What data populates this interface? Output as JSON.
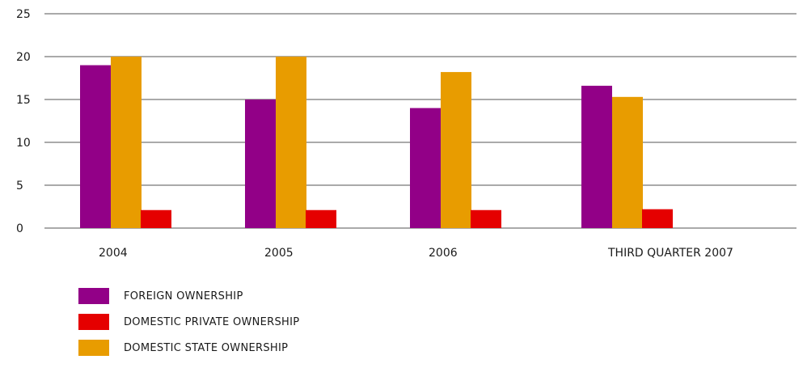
{
  "chart_data": {
    "type": "bar",
    "title": "",
    "xlabel": "",
    "ylabel": "",
    "categories": [
      "2004",
      "2005",
      "2006",
      "THIRD QUARTER 2007"
    ],
    "ylim": [
      0,
      25
    ],
    "yticks": [
      0,
      5,
      10,
      15,
      20,
      25
    ],
    "grid": true,
    "legend_position": "bottom-left",
    "series": [
      {
        "name": "FOREIGN OWNERSHIP",
        "color": "#920087",
        "values": [
          19,
          15,
          14,
          16.6
        ]
      },
      {
        "name": "DOMESTIC STATE OWNERSHIP",
        "color": "#e89c00",
        "values": [
          20,
          20,
          18.2,
          15.3
        ]
      },
      {
        "name": "DOMESTIC PRIVATE OWNERSHIP",
        "color": "#e50000",
        "values": [
          2.1,
          2.1,
          2.1,
          2.2
        ]
      }
    ],
    "legend_order": [
      "FOREIGN OWNERSHIP",
      "DOMESTIC PRIVATE OWNERSHIP",
      "DOMESTIC STATE OWNERSHIP"
    ]
  }
}
